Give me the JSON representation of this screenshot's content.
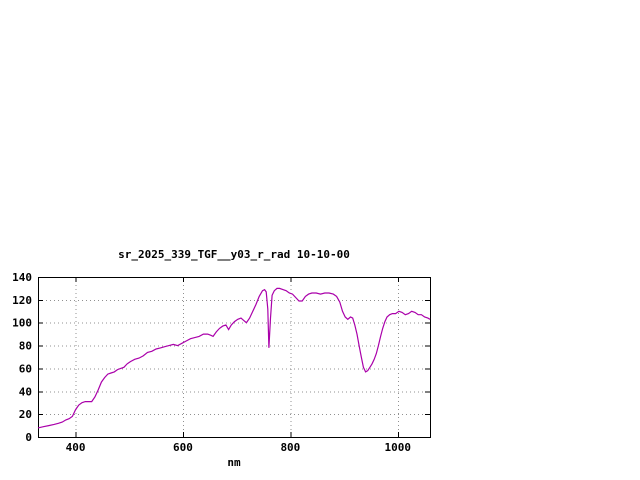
{
  "window": {
    "background": "#ffffff"
  },
  "chart_data": {
    "type": "line",
    "title": "sr_2025_339_TGF__y03_r_rad 10-10-00",
    "xlabel": "nm",
    "ylabel": "",
    "xlim": [
      330,
      1060
    ],
    "ylim": [
      0,
      140
    ],
    "xticks": [
      400,
      600,
      800,
      1000
    ],
    "yticks": [
      0,
      20,
      40,
      60,
      80,
      100,
      120,
      140
    ],
    "grid": true,
    "legend": "none",
    "line_color": "#aa00aa",
    "series": [
      {
        "name": "sr_2025_339_TGF__y03_r_rad",
        "points": [
          [
            330,
            8
          ],
          [
            340,
            9
          ],
          [
            350,
            10
          ],
          [
            360,
            11
          ],
          [
            368,
            12
          ],
          [
            375,
            13
          ],
          [
            382,
            15
          ],
          [
            388,
            16
          ],
          [
            394,
            18
          ],
          [
            400,
            24
          ],
          [
            406,
            28
          ],
          [
            412,
            30
          ],
          [
            418,
            31
          ],
          [
            424,
            31
          ],
          [
            430,
            31
          ],
          [
            436,
            35
          ],
          [
            442,
            41
          ],
          [
            448,
            48
          ],
          [
            454,
            52
          ],
          [
            460,
            55
          ],
          [
            466,
            56
          ],
          [
            472,
            57
          ],
          [
            478,
            59
          ],
          [
            484,
            60
          ],
          [
            490,
            61
          ],
          [
            496,
            64
          ],
          [
            502,
            66
          ],
          [
            510,
            68
          ],
          [
            518,
            69
          ],
          [
            526,
            71
          ],
          [
            534,
            74
          ],
          [
            542,
            75
          ],
          [
            550,
            77
          ],
          [
            558,
            78
          ],
          [
            566,
            79
          ],
          [
            574,
            80
          ],
          [
            582,
            81
          ],
          [
            590,
            80
          ],
          [
            598,
            82
          ],
          [
            606,
            84
          ],
          [
            614,
            86
          ],
          [
            622,
            87
          ],
          [
            630,
            88
          ],
          [
            638,
            90
          ],
          [
            646,
            90
          ],
          [
            652,
            89
          ],
          [
            656,
            88
          ],
          [
            662,
            92
          ],
          [
            668,
            95
          ],
          [
            674,
            97
          ],
          [
            680,
            98
          ],
          [
            685,
            94
          ],
          [
            690,
            98
          ],
          [
            696,
            101
          ],
          [
            702,
            103
          ],
          [
            708,
            104
          ],
          [
            713,
            102
          ],
          [
            718,
            100
          ],
          [
            724,
            104
          ],
          [
            730,
            110
          ],
          [
            736,
            116
          ],
          [
            742,
            123
          ],
          [
            748,
            128
          ],
          [
            752,
            129
          ],
          [
            755,
            127
          ],
          [
            758,
            112
          ],
          [
            760,
            78
          ],
          [
            763,
            104
          ],
          [
            766,
            124
          ],
          [
            770,
            128
          ],
          [
            775,
            130
          ],
          [
            780,
            130
          ],
          [
            786,
            129
          ],
          [
            792,
            128
          ],
          [
            798,
            126
          ],
          [
            804,
            125
          ],
          [
            810,
            122
          ],
          [
            816,
            119
          ],
          [
            822,
            119
          ],
          [
            828,
            123
          ],
          [
            834,
            125
          ],
          [
            840,
            126
          ],
          [
            848,
            126
          ],
          [
            856,
            125
          ],
          [
            864,
            126
          ],
          [
            872,
            126
          ],
          [
            880,
            125
          ],
          [
            886,
            123
          ],
          [
            892,
            118
          ],
          [
            897,
            110
          ],
          [
            902,
            105
          ],
          [
            907,
            103
          ],
          [
            912,
            105
          ],
          [
            916,
            104
          ],
          [
            920,
            98
          ],
          [
            924,
            90
          ],
          [
            928,
            80
          ],
          [
            932,
            70
          ],
          [
            936,
            61
          ],
          [
            940,
            57
          ],
          [
            944,
            58
          ],
          [
            948,
            61
          ],
          [
            952,
            64
          ],
          [
            956,
            68
          ],
          [
            960,
            73
          ],
          [
            964,
            80
          ],
          [
            968,
            88
          ],
          [
            972,
            95
          ],
          [
            976,
            101
          ],
          [
            980,
            105
          ],
          [
            985,
            107
          ],
          [
            990,
            108
          ],
          [
            996,
            108
          ],
          [
            1002,
            110
          ],
          [
            1008,
            109
          ],
          [
            1014,
            107
          ],
          [
            1020,
            108
          ],
          [
            1026,
            110
          ],
          [
            1032,
            109
          ],
          [
            1038,
            107
          ],
          [
            1044,
            107
          ],
          [
            1050,
            105
          ],
          [
            1056,
            104
          ],
          [
            1060,
            103
          ]
        ]
      }
    ]
  }
}
